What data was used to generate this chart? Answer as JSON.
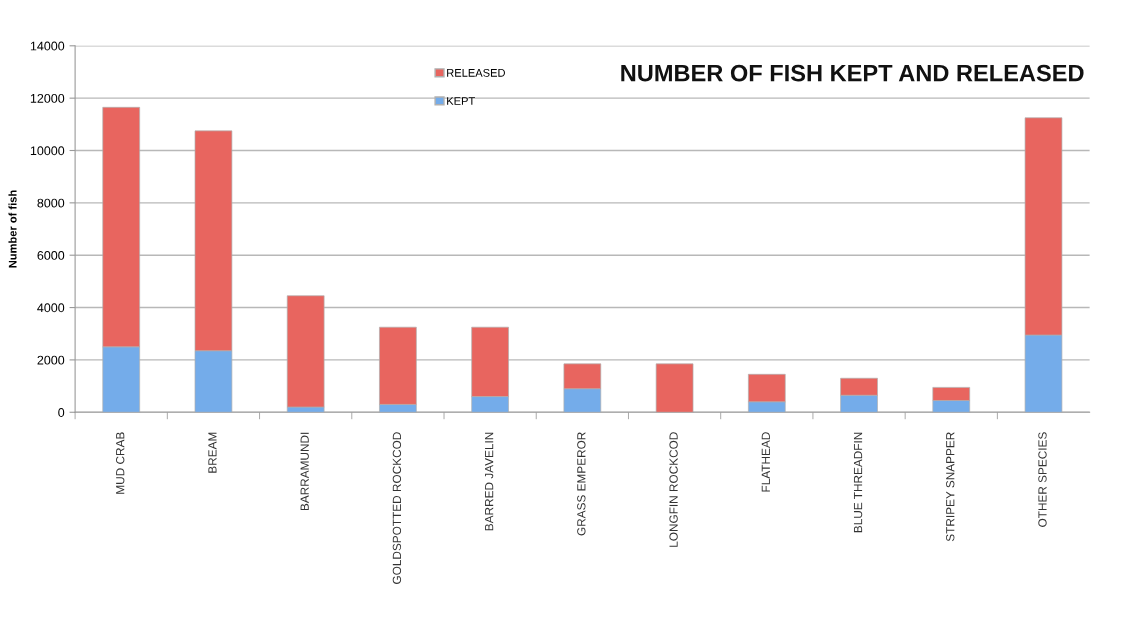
{
  "chart_data": {
    "type": "bar",
    "title": "NUMBER OF FISH KEPT AND RELEASED",
    "ylabel": "Number of fish",
    "categories": [
      "MUD CRAB",
      "BREAM",
      "BARRAMUNDI",
      "GOLDSPOTTED ROCKCOD",
      "BARRED JAVELIN",
      "GRASS EMPEROR",
      "LONGFIN ROCKCOD",
      "FLATHEAD",
      "BLUE THREADFIN",
      "STRIPEY SNAPPER",
      "OTHER SPECIES"
    ],
    "series": [
      {
        "name": "KEPT",
        "color": "#74acea",
        "values": [
          2500,
          2350,
          200,
          300,
          600,
          900,
          0,
          400,
          650,
          450,
          2950
        ]
      },
      {
        "name": "RELEASED",
        "color": "#e8655f",
        "values": [
          9150,
          8400,
          4250,
          2950,
          2650,
          950,
          1850,
          1050,
          650,
          500,
          8300
        ]
      }
    ],
    "stacked": true,
    "ylim": [
      0,
      14000
    ],
    "yticks": [
      0,
      2000,
      4000,
      6000,
      8000,
      10000,
      12000,
      14000
    ],
    "grid": "y",
    "legend": "top"
  }
}
